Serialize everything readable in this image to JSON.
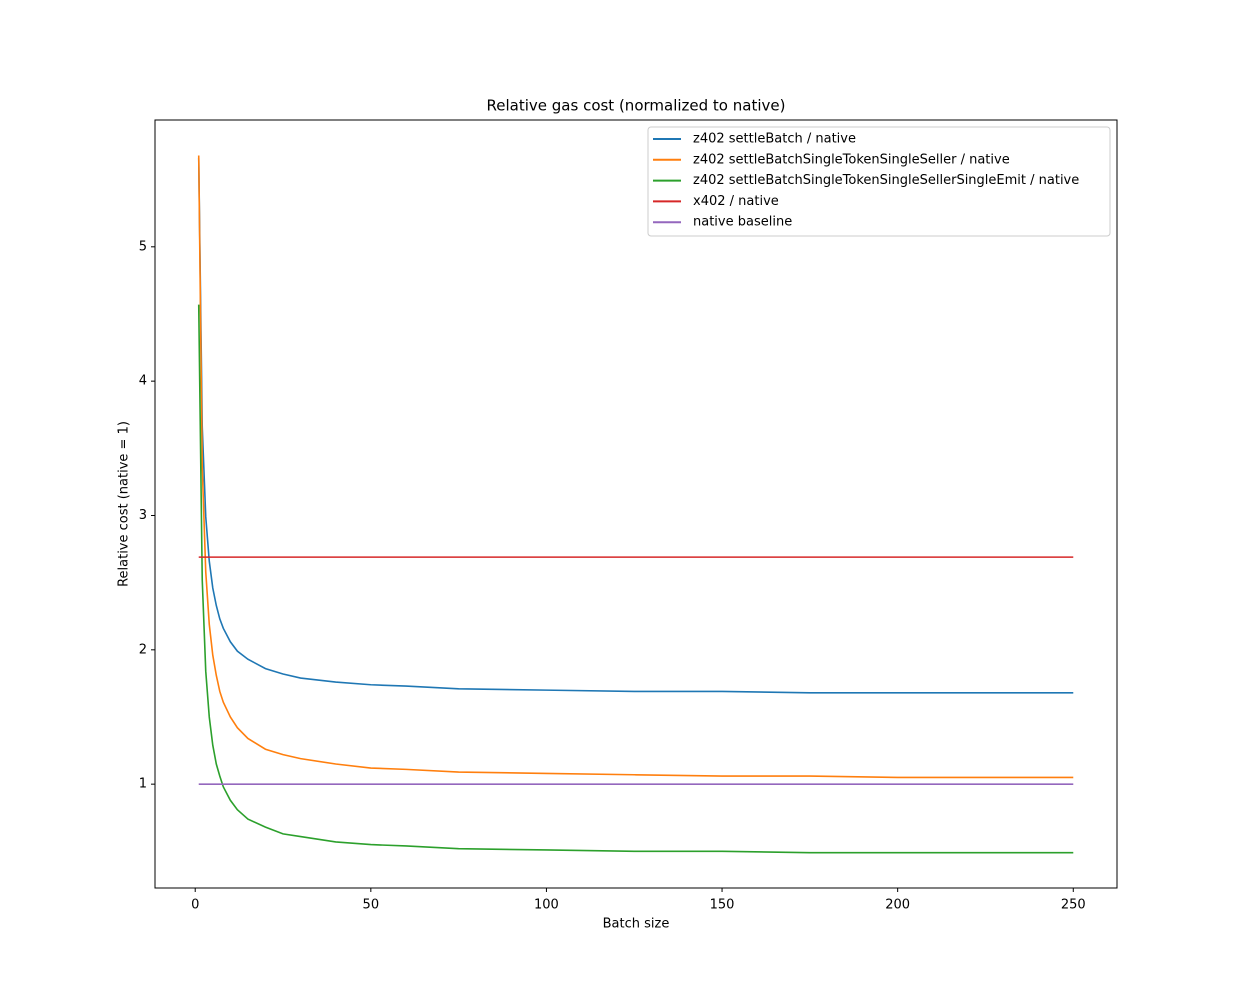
{
  "chart_data": {
    "type": "line",
    "title": "Relative gas cost (normalized to native)",
    "x_label": "Batch size",
    "y_label": "Relative cost (native = 1)",
    "x": [
      1,
      2,
      3,
      4,
      5,
      6,
      7,
      8,
      10,
      12,
      15,
      20,
      25,
      30,
      40,
      50,
      60,
      75,
      100,
      125,
      150,
      175,
      200,
      225,
      250
    ],
    "series": [
      {
        "name": "z402 settleBatch / native",
        "color": "#1f77b4",
        "values": [
          5.66,
          3.66,
          2.99,
          2.66,
          2.46,
          2.33,
          2.23,
          2.16,
          2.06,
          1.99,
          1.93,
          1.86,
          1.82,
          1.79,
          1.76,
          1.74,
          1.73,
          1.71,
          1.7,
          1.69,
          1.69,
          1.68,
          1.68,
          1.68,
          1.68
        ]
      },
      {
        "name": "z402 settleBatchSingleTokenSingleSeller / native",
        "color": "#ff7f0e",
        "values": [
          5.68,
          3.36,
          2.58,
          2.19,
          1.96,
          1.81,
          1.69,
          1.61,
          1.5,
          1.42,
          1.34,
          1.26,
          1.22,
          1.19,
          1.15,
          1.12,
          1.11,
          1.09,
          1.08,
          1.07,
          1.06,
          1.06,
          1.05,
          1.05,
          1.05
        ]
      },
      {
        "name": "z402 settleBatchSingleTokenSingleSellerSingleEmit / native",
        "color": "#2ca02c",
        "values": [
          4.57,
          2.52,
          1.84,
          1.5,
          1.29,
          1.15,
          1.06,
          0.98,
          0.88,
          0.81,
          0.74,
          0.68,
          0.63,
          0.61,
          0.57,
          0.55,
          0.54,
          0.52,
          0.51,
          0.5,
          0.5,
          0.49,
          0.49,
          0.49,
          0.49
        ]
      },
      {
        "name": "x402 / native",
        "color": "#d62728",
        "values": [
          2.69,
          2.69,
          2.69,
          2.69,
          2.69,
          2.69,
          2.69,
          2.69,
          2.69,
          2.69,
          2.69,
          2.69,
          2.69,
          2.69,
          2.69,
          2.69,
          2.69,
          2.69,
          2.69,
          2.69,
          2.69,
          2.69,
          2.69,
          2.69,
          2.69
        ]
      },
      {
        "name": "native baseline",
        "color": "#9467bd",
        "values": [
          1,
          1,
          1,
          1,
          1,
          1,
          1,
          1,
          1,
          1,
          1,
          1,
          1,
          1,
          1,
          1,
          1,
          1,
          1,
          1,
          1,
          1,
          1,
          1,
          1
        ]
      }
    ],
    "xlim": [
      -11.45,
      262.45
    ],
    "ylim": [
      0.227,
      5.944
    ],
    "xticks": [
      0,
      50,
      100,
      150,
      200,
      250
    ],
    "yticks": [
      1,
      2,
      3,
      4,
      5
    ],
    "grid": false,
    "legend": "upper right"
  }
}
